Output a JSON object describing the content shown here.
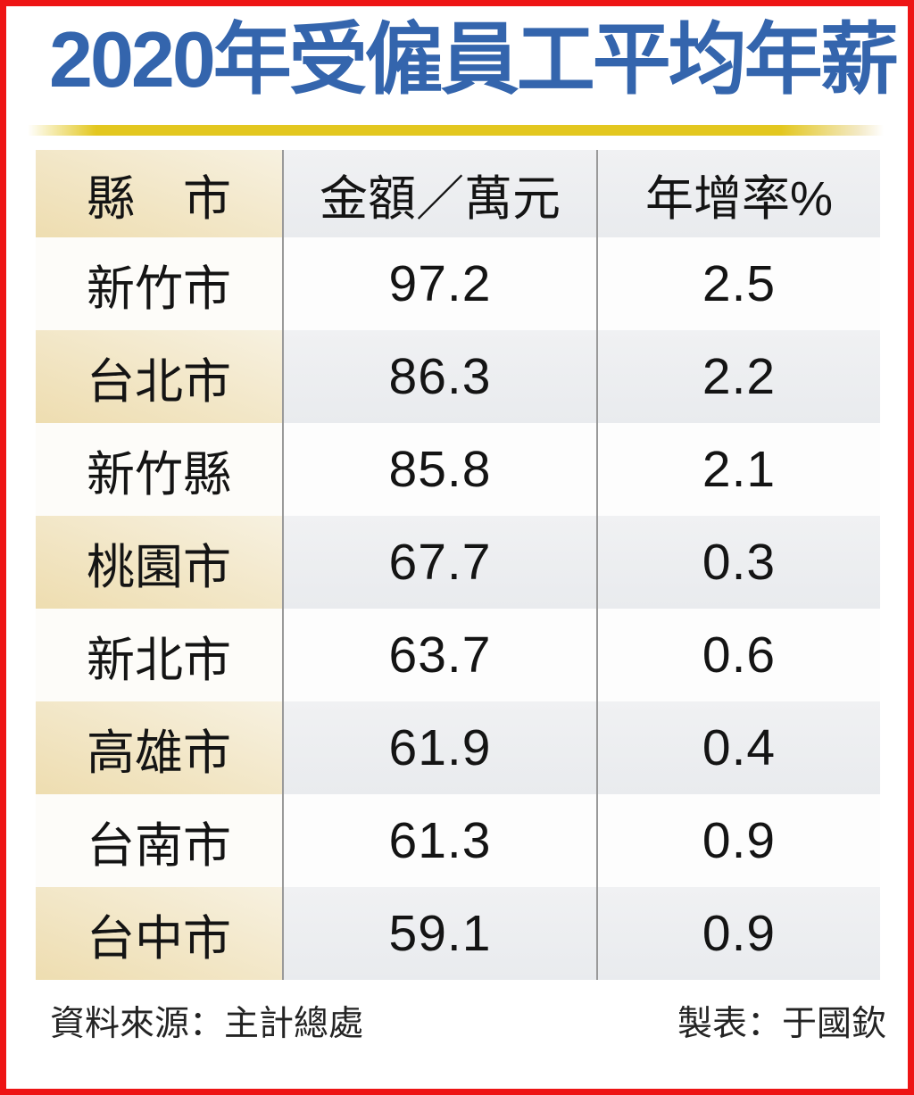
{
  "title": "2020年受僱員工平均年薪",
  "colors": {
    "title-blue": "#3465ad",
    "gold": "#e3c71f",
    "border-red": "#ee1414",
    "beige-light": "#f7f1e0",
    "beige-dark": "#eeddb0",
    "gray-tint": "#e9ebee",
    "divider-gray": "#9a9a9a"
  },
  "table": {
    "headers": [
      "縣　市",
      "金額／萬元",
      "年增率%"
    ],
    "rows": [
      {
        "city": "新竹市",
        "amount": "97.2",
        "growth": "2.5"
      },
      {
        "city": "台北市",
        "amount": "86.3",
        "growth": "2.2"
      },
      {
        "city": "新竹縣",
        "amount": "85.8",
        "growth": "2.1"
      },
      {
        "city": "桃園市",
        "amount": "67.7",
        "growth": "0.3"
      },
      {
        "city": "新北市",
        "amount": "63.7",
        "growth": "0.6"
      },
      {
        "city": "高雄市",
        "amount": "61.9",
        "growth": "0.4"
      },
      {
        "city": "台南市",
        "amount": "61.3",
        "growth": "0.9"
      },
      {
        "city": "台中市",
        "amount": "59.1",
        "growth": "0.9"
      }
    ]
  },
  "footer": {
    "source": "資料來源：主計總處",
    "credit": "製表：于國欽"
  },
  "chart_data": {
    "type": "table",
    "title": "2020年受僱員工平均年薪",
    "columns": [
      "縣市",
      "金額／萬元",
      "年增率%"
    ],
    "rows": [
      [
        "新竹市",
        97.2,
        2.5
      ],
      [
        "台北市",
        86.3,
        2.2
      ],
      [
        "新竹縣",
        85.8,
        2.1
      ],
      [
        "桃園市",
        67.7,
        0.3
      ],
      [
        "新北市",
        63.7,
        0.6
      ],
      [
        "高雄市",
        61.9,
        0.4
      ],
      [
        "台南市",
        61.3,
        0.9
      ],
      [
        "台中市",
        59.1,
        0.9
      ]
    ],
    "notes": "Average annual salary of employees by Taiwanese county/city in 2020; amounts in 10,000 NTD; annual growth in percent"
  }
}
